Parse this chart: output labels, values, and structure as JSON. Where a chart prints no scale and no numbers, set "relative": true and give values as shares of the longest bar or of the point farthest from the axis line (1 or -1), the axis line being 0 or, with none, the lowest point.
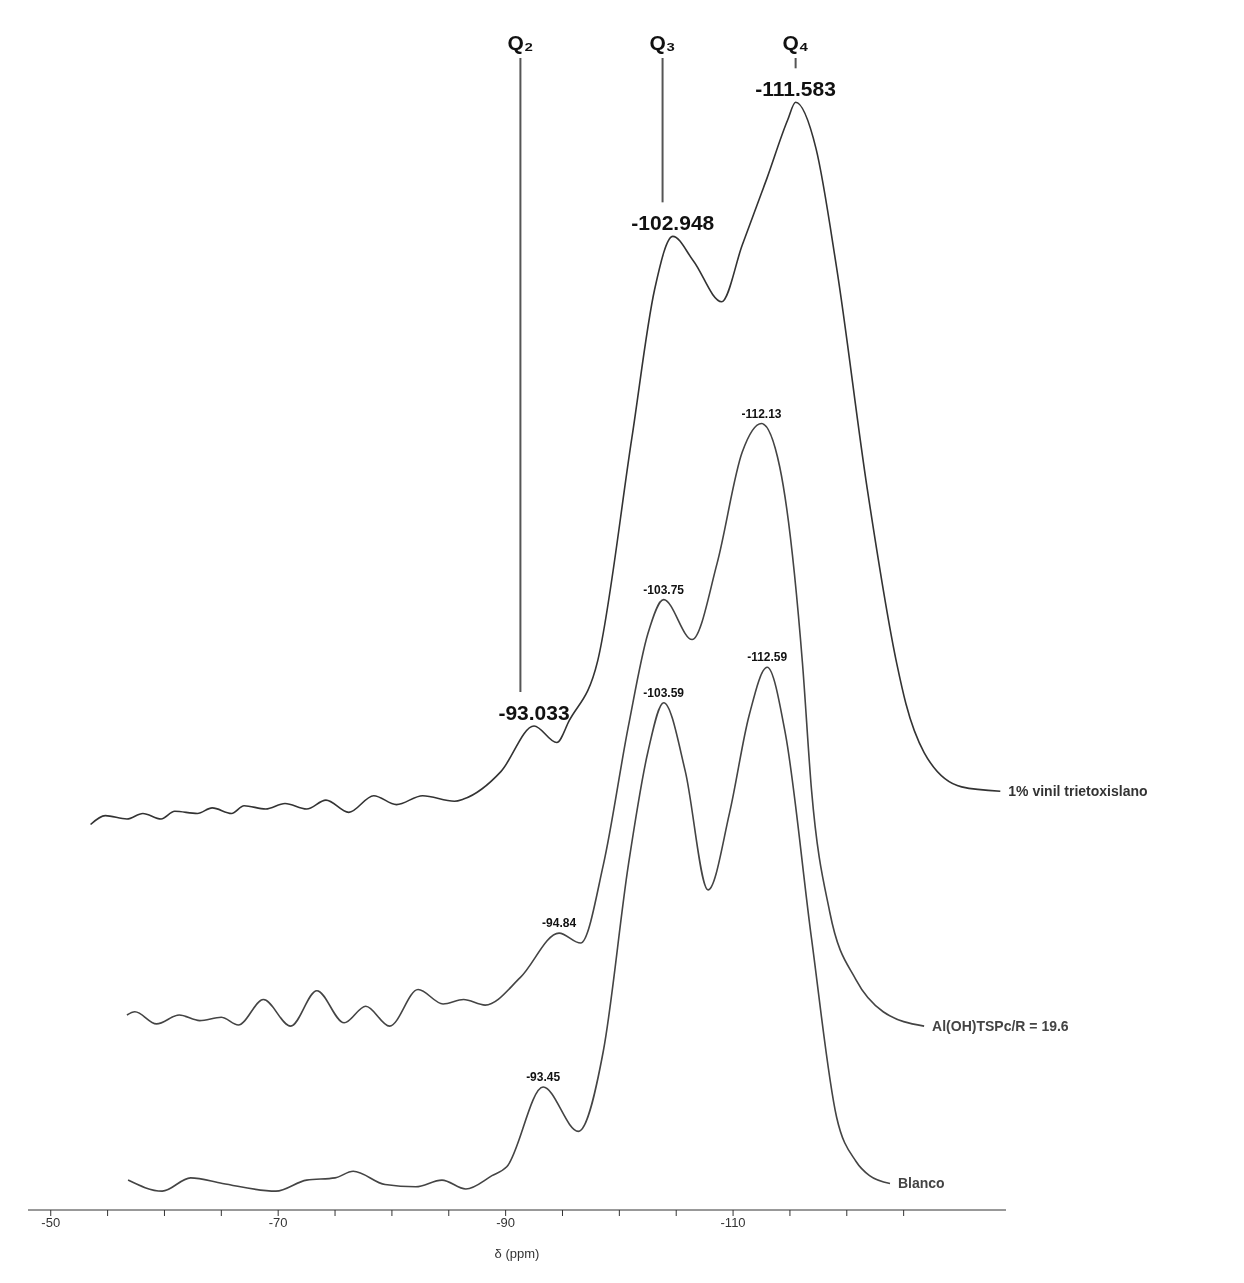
{
  "chart_data": {
    "type": "line",
    "relative": true,
    "xlabel": "δ (ppm)",
    "xlim": [
      -48,
      -134
    ],
    "xticks": [
      {
        "value": -50,
        "label": "-50"
      },
      {
        "value": -55,
        "label": null
      },
      {
        "value": -60,
        "label": null
      },
      {
        "value": -65,
        "label": null
      },
      {
        "value": -70,
        "label": "-70"
      },
      {
        "value": -75,
        "label": null
      },
      {
        "value": -80,
        "label": null
      },
      {
        "value": -85,
        "label": null
      },
      {
        "value": -90,
        "label": "-90"
      },
      {
        "value": -95,
        "label": null
      },
      {
        "value": -100,
        "label": null
      },
      {
        "value": -105,
        "label": null
      },
      {
        "value": -110,
        "label": "-110"
      },
      {
        "value": -115,
        "label": null
      },
      {
        "value": -120,
        "label": null
      },
      {
        "value": -125,
        "label": null
      }
    ],
    "grid": false,
    "legend": false,
    "marker": "none",
    "line_style": "solid",
    "series": [
      {
        "name": "1% vinil trietoxislano",
        "color": "#333333",
        "x": [
          -53.5,
          -54.8,
          -56.7,
          -58.1,
          -59.7,
          -60.9,
          -62.9,
          -64.2,
          -65.9,
          -67.0,
          -68.9,
          -70.6,
          -72.5,
          -74.2,
          -76.2,
          -78.4,
          -80.4,
          -82.7,
          -85.5,
          -86.3,
          -89.6,
          -92.5,
          -94.5,
          -95.6,
          -98.1,
          -101.1,
          -103.1,
          -104.7,
          -106.5,
          -109.0,
          -110.8,
          -113.0,
          -114.8,
          -115.5,
          -117.3,
          -119.1,
          -121.8,
          -124.4,
          -125.2,
          -126.8,
          -130.1,
          -133.5
        ],
        "values": [
          0.348,
          0.356,
          0.353,
          0.358,
          0.353,
          0.36,
          0.358,
          0.363,
          0.358,
          0.365,
          0.362,
          0.367,
          0.362,
          0.37,
          0.359,
          0.374,
          0.366,
          0.374,
          0.369,
          0.371,
          0.396,
          0.437,
          0.422,
          0.442,
          0.496,
          0.697,
          0.831,
          0.879,
          0.857,
          0.82,
          0.871,
          0.932,
          0.984,
          1.0,
          0.958,
          0.851,
          0.651,
          0.493,
          0.457,
          0.413,
          0.382,
          0.378
        ]
      },
      {
        "name": "Al(OH)TSPc/R = 19.6",
        "color": "#444444",
        "x": [
          -56.7,
          -57.4,
          -59.3,
          -61.3,
          -63.1,
          -65.0,
          -66.5,
          -68.7,
          -71.1,
          -73.4,
          -75.8,
          -77.7,
          -79.8,
          -82.3,
          -84.5,
          -86.3,
          -88.2,
          -91.3,
          -94.7,
          -96.6,
          -98.6,
          -100.8,
          -102.5,
          -103.9,
          -106.4,
          -108.6,
          -110.8,
          -112.5,
          -114.1,
          -116.1,
          -116.9,
          -118.5,
          -120.8,
          -123.2,
          -126.8
        ],
        "values": [
          0.176,
          0.179,
          0.168,
          0.176,
          0.171,
          0.174,
          0.167,
          0.19,
          0.166,
          0.198,
          0.169,
          0.184,
          0.166,
          0.199,
          0.186,
          0.19,
          0.185,
          0.21,
          0.25,
          0.241,
          0.312,
          0.437,
          0.52,
          0.551,
          0.515,
          0.584,
          0.684,
          0.71,
          0.671,
          0.494,
          0.379,
          0.269,
          0.208,
          0.179,
          0.166
        ]
      },
      {
        "name": "Blanco",
        "color": "#444444",
        "x": [
          -56.8,
          -59.8,
          -62.3,
          -65.1,
          -69.8,
          -72.5,
          -75.0,
          -76.6,
          -79.4,
          -82.1,
          -84.4,
          -86.5,
          -88.8,
          -90.1,
          -93.3,
          -96.4,
          -98.6,
          -100.8,
          -102.5,
          -103.9,
          -105.8,
          -107.8,
          -109.7,
          -111.4,
          -113.0,
          -114.6,
          -116.9,
          -119.1,
          -120.8,
          -122.0,
          -123.8
        ],
        "values": [
          0.027,
          0.017,
          0.029,
          0.024,
          0.017,
          0.027,
          0.029,
          0.035,
          0.023,
          0.021,
          0.027,
          0.019,
          0.031,
          0.039,
          0.111,
          0.071,
          0.144,
          0.312,
          0.413,
          0.458,
          0.396,
          0.289,
          0.359,
          0.446,
          0.49,
          0.43,
          0.245,
          0.084,
          0.044,
          0.031,
          0.024
        ]
      }
    ],
    "ref_lines": [
      {
        "axis": "x",
        "value": -91.3,
        "label": "Q₂"
      },
      {
        "axis": "x",
        "value": -103.8,
        "label": "Q₃"
      },
      {
        "axis": "x",
        "value": -115.5,
        "label": "Q₄"
      }
    ],
    "annotations": [
      {
        "text": "-111.583",
        "x": -115.5,
        "y": 1.0
      },
      {
        "text": "-102.948",
        "x": -104.7,
        "y": 0.879
      },
      {
        "text": "-93.033",
        "x": -92.5,
        "y": 0.437
      },
      {
        "text": "-112.13",
        "x": -112.5,
        "y": 0.71
      },
      {
        "text": "-103.75",
        "x": -103.9,
        "y": 0.551
      },
      {
        "text": "-94.84",
        "x": -94.7,
        "y": 0.25
      },
      {
        "text": "-103.59",
        "x": -103.9,
        "y": 0.458
      },
      {
        "text": "-112.59",
        "x": -113.0,
        "y": 0.49
      },
      {
        "text": "-93.45",
        "x": -93.3,
        "y": 0.111
      }
    ]
  }
}
